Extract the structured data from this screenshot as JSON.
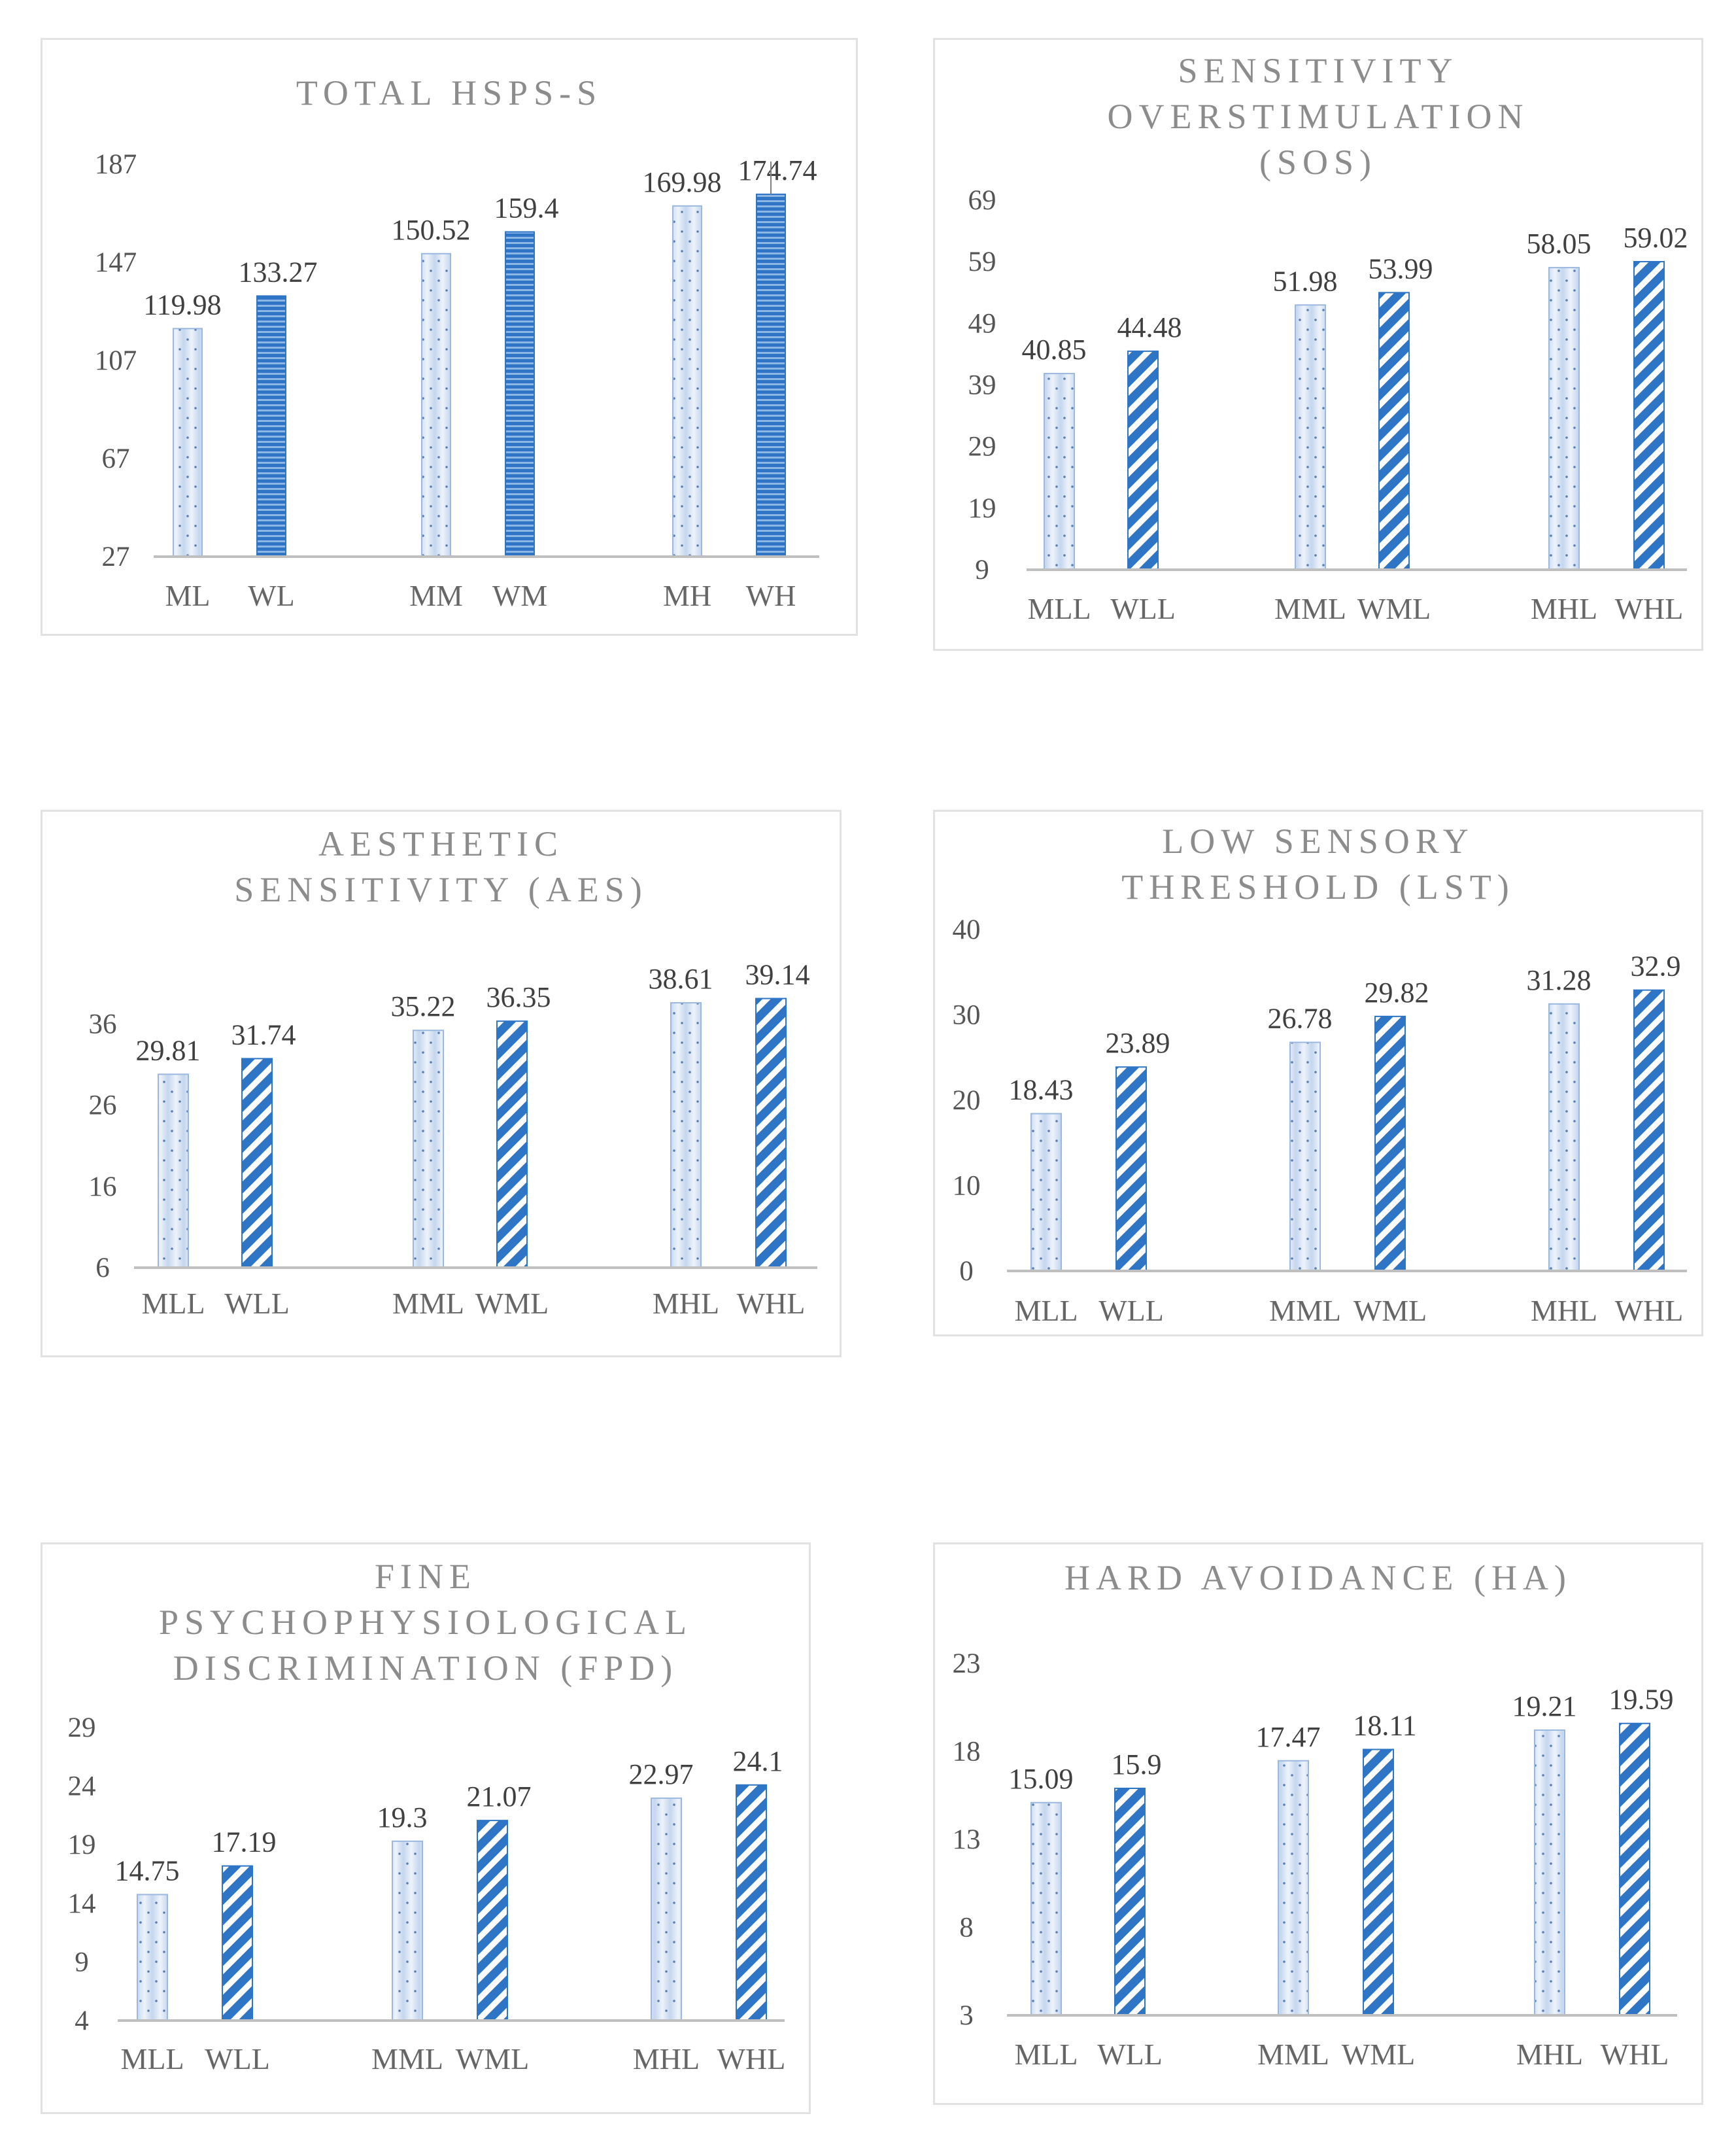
{
  "colors": {
    "bar_blue": "#2e75c6",
    "bar_light": "#dbe7f6",
    "axis": "#bfbfbf",
    "title": "#8c8c8c",
    "border": "#e2e2e2"
  },
  "chart_data": [
    {
      "type": "bar",
      "title_lines": [
        "TOTAL HSPS-S"
      ],
      "categories": [
        "ML",
        "WL",
        "MM",
        "WM",
        "MH",
        "WH"
      ],
      "values": [
        119.98,
        133.27,
        150.52,
        159.4,
        169.98,
        174.74
      ],
      "value_labels": [
        "119.98",
        "133.27",
        "150.52",
        "159.4",
        "169.98",
        "174.74"
      ],
      "patterns": [
        "dots",
        "hlines",
        "dots",
        "hlines",
        "dots",
        "hlines"
      ],
      "ylim": [
        27,
        187
      ],
      "yticks": [
        27,
        67,
        107,
        147,
        187
      ],
      "ytick_labels": [
        "27",
        "67",
        "107",
        "147",
        "187"
      ],
      "xlabel": "",
      "ylabel": ""
    },
    {
      "type": "bar",
      "title_lines": [
        "SENSITIVITY",
        "OVERSTIMULATION",
        "(SOS)"
      ],
      "categories": [
        "MLL",
        "WLL",
        "MML",
        "WML",
        "MHL",
        "WHL"
      ],
      "values": [
        40.85,
        44.48,
        51.98,
        53.99,
        58.05,
        59.02
      ],
      "value_labels": [
        "40.85",
        "44.48",
        "51.98",
        "53.99",
        "58.05",
        "59.02"
      ],
      "patterns": [
        "dots",
        "diag",
        "dots",
        "diag",
        "dots",
        "diag"
      ],
      "ylim": [
        9,
        69
      ],
      "yticks": [
        9,
        19,
        29,
        39,
        49,
        59,
        69
      ],
      "ytick_labels": [
        "9",
        "19",
        "29",
        "39",
        "49",
        "59",
        "69"
      ],
      "xlabel": "",
      "ylabel": ""
    },
    {
      "type": "bar",
      "title_lines": [
        "AESTHETIC",
        "SENSITIVITY (AES)"
      ],
      "categories": [
        "MLL",
        "WLL",
        "MML",
        "WML",
        "MHL",
        "WHL"
      ],
      "values": [
        29.81,
        31.74,
        35.22,
        36.35,
        38.61,
        39.14
      ],
      "value_labels": [
        "29.81",
        "31.74",
        "35.22",
        "36.35",
        "38.61",
        "39.14"
      ],
      "patterns": [
        "dots",
        "diag",
        "dots",
        "diag",
        "dots",
        "diag"
      ],
      "ylim": [
        6,
        42
      ],
      "yticks": [
        6,
        16,
        26,
        36
      ],
      "ytick_labels": [
        "6",
        "16",
        "26",
        "36"
      ],
      "xlabel": "",
      "ylabel": ""
    },
    {
      "type": "bar",
      "title_lines": [
        "LOW SENSORY",
        "THRESHOLD (LST)"
      ],
      "categories": [
        "MLL",
        "WLL",
        "MML",
        "WML",
        "MHL",
        "WHL"
      ],
      "values": [
        18.43,
        23.89,
        26.78,
        29.82,
        31.28,
        32.9
      ],
      "value_labels": [
        "18.43",
        "23.89",
        "26.78",
        "29.82",
        "31.28",
        "32.9"
      ],
      "patterns": [
        "dots",
        "diag",
        "dots",
        "diag",
        "dots",
        "diag"
      ],
      "ylim": [
        0,
        40
      ],
      "yticks": [
        0,
        10,
        20,
        30,
        40
      ],
      "ytick_labels": [
        "0",
        "10",
        "20",
        "30",
        "40"
      ],
      "xlabel": "",
      "ylabel": ""
    },
    {
      "type": "bar",
      "title_lines": [
        "FINE",
        "PSYCHOPHYSIOLOGICAL",
        "DISCRIMINATION (FPD)"
      ],
      "categories": [
        "MLL",
        "WLL",
        "MML",
        "WML",
        "MHL",
        "WHL"
      ],
      "values": [
        14.75,
        17.19,
        19.3,
        21.07,
        22.97,
        24.1
      ],
      "value_labels": [
        "14.75",
        "17.19",
        "19.3",
        "21.07",
        "22.97",
        "24.1"
      ],
      "patterns": [
        "dots",
        "diag",
        "dots",
        "diag",
        "dots",
        "diag"
      ],
      "ylim": [
        4,
        29
      ],
      "yticks": [
        4,
        9,
        14,
        19,
        24,
        29
      ],
      "ytick_labels": [
        "4",
        "9",
        "14",
        "19",
        "24",
        "29"
      ],
      "xlabel": "",
      "ylabel": ""
    },
    {
      "type": "bar",
      "title_lines": [
        "HARD AVOIDANCE (HA)"
      ],
      "categories": [
        "MLL",
        "WLL",
        "MML",
        "WML",
        "MHL",
        "WHL"
      ],
      "values": [
        15.09,
        15.9,
        17.47,
        18.11,
        19.21,
        19.59
      ],
      "value_labels": [
        "15.09",
        "15.9",
        "17.47",
        "18.11",
        "19.21",
        "19.59"
      ],
      "patterns": [
        "dots",
        "diag",
        "dots",
        "diag",
        "dots",
        "diag"
      ],
      "ylim": [
        3,
        23
      ],
      "yticks": [
        3,
        8,
        13,
        18,
        23
      ],
      "ytick_labels": [
        "3",
        "8",
        "13",
        "18",
        "23"
      ],
      "xlabel": "",
      "ylabel": ""
    }
  ]
}
